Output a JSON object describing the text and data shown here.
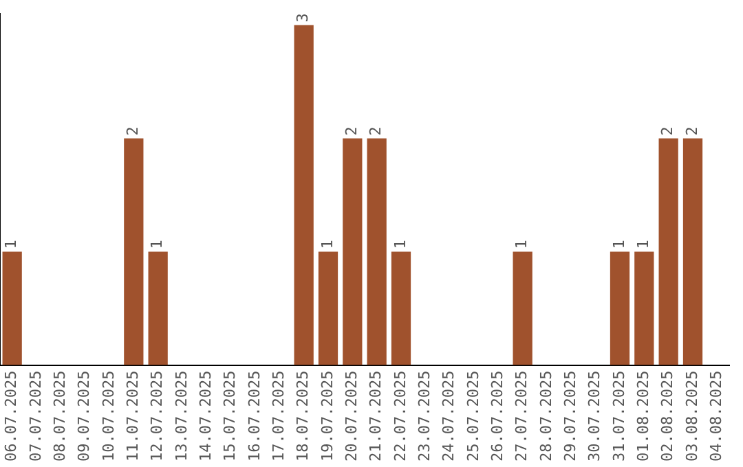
{
  "chart_data": {
    "type": "bar",
    "categories": [
      "06.07.2025",
      "07.07.2025",
      "08.07.2025",
      "09.07.2025",
      "10.07.2025",
      "11.07.2025",
      "12.07.2025",
      "13.07.2025",
      "14.07.2025",
      "15.07.2025",
      "16.07.2025",
      "17.07.2025",
      "18.07.2025",
      "19.07.2025",
      "20.07.2025",
      "21.07.2025",
      "22.07.2025",
      "23.07.2025",
      "24.07.2025",
      "25.07.2025",
      "26.07.2025",
      "27.07.2025",
      "28.07.2025",
      "29.07.2025",
      "30.07.2025",
      "31.07.2025",
      "01.08.2025",
      "02.08.2025",
      "03.08.2025",
      "04.08.2025"
    ],
    "values": [
      1,
      0,
      0,
      0,
      0,
      2,
      1,
      0,
      0,
      0,
      0,
      0,
      3,
      1,
      2,
      2,
      1,
      0,
      0,
      0,
      0,
      1,
      0,
      0,
      0,
      1,
      1,
      2,
      2,
      0
    ],
    "value_labels": [
      "1",
      null,
      null,
      null,
      null,
      "2",
      "1",
      null,
      null,
      null,
      null,
      null,
      "3",
      "1",
      "2",
      "2",
      "1",
      null,
      null,
      null,
      null,
      "1",
      null,
      null,
      null,
      "1",
      "1",
      "2",
      "2",
      null
    ],
    "color": "#a0522d",
    "ylim": [
      0,
      3.1
    ],
    "tick_labels": "x",
    "grid": false,
    "legend": false
  }
}
